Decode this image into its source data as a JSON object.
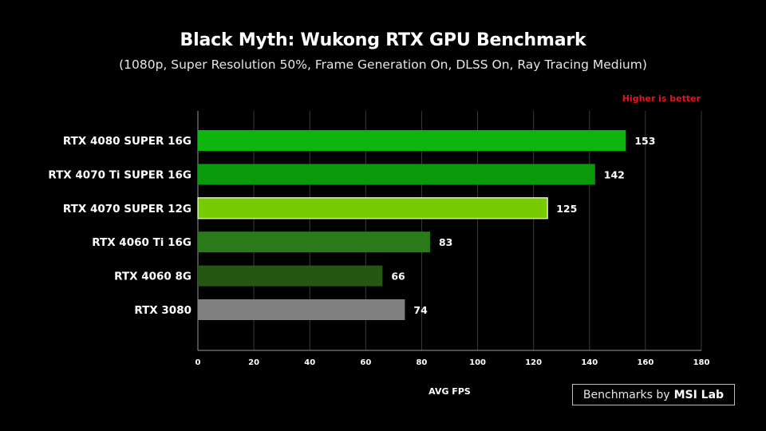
{
  "chart_data": {
    "type": "bar",
    "orientation": "horizontal",
    "title": "Black Myth: Wukong RTX GPU Benchmark",
    "subtitle": "(1080p, Super Resolution 50%, Frame Generation On, DLSS On, Ray Tracing Medium)",
    "annotation": "Higher is better",
    "xlabel": "AVG FPS",
    "ylabel": "",
    "xlim": [
      0,
      180
    ],
    "x_ticks": [
      0,
      20,
      40,
      60,
      80,
      100,
      120,
      140,
      160,
      180
    ],
    "grid": true,
    "categories": [
      "RTX 4080 SUPER 16G",
      "RTX 4070 Ti SUPER 16G",
      "RTX 4070 SUPER 12G",
      "RTX 4060 Ti 16G",
      "RTX 4060 8G",
      "RTX 3080"
    ],
    "values": [
      153,
      142,
      125,
      83,
      66,
      74
    ],
    "colors": [
      "#0fb50f",
      "#0a990a",
      "#76cc00",
      "#2a7a1a",
      "#255713",
      "#808080"
    ],
    "highlighted_category": "RTX 4070 SUPER 12G"
  },
  "credit": {
    "text": "Benchmarks by",
    "brand": "MSI Lab"
  },
  "colors": {
    "background": "#000000",
    "annotation": "#e8141c",
    "grid": "#3a3a3a",
    "axis": "#9a9a9a"
  }
}
